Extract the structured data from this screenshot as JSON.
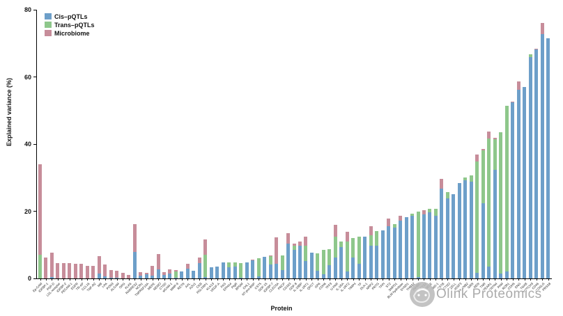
{
  "watermark": {
    "text": "Olink Proteomics",
    "logo": "olink-circle-logo",
    "color": "#9d9d9d"
  },
  "chart_data": {
    "type": "bar",
    "stacked": true,
    "title": "",
    "xlabel": "Protein",
    "ylabel": "Explained variance (%)",
    "ylim": [
      0,
      80
    ],
    "yticks": [
      0,
      20,
      40,
      60,
      80
    ],
    "grid": false,
    "legend_position": "top-left",
    "legend": [
      {
        "label": "Cis–pQTLs",
        "color": "#6d9fc9"
      },
      {
        "label": "Trans–pQTLs",
        "color": "#8ec78b"
      },
      {
        "label": "Microbiome",
        "color": "#c78d9a"
      }
    ],
    "categories": [
      "Ep-CAM",
      "IGFBP-1",
      "PSP-D",
      "LDL receptor",
      "IGFBP-2",
      "PECAM-1",
      "EGFR",
      "TR-AP",
      "CCL16",
      "TNF-R2",
      "MB",
      "t-PA",
      "PON3",
      "ALCAM",
      "OPG",
      "KLK6",
      "RARRES2",
      "NCR1",
      "TNFRSF10A",
      "MEPE",
      "NEMO",
      "CTSD",
      "sICAM-1",
      "MMP-9",
      "RETN",
      "AXL",
      "AZU1",
      "CKB",
      "PGLYRP1",
      "KLK13",
      "VEGF-A",
      "FAS",
      "EPHA4",
      "PIgR",
      "BPGM",
      "CHL1",
      "NT-pro-BNP",
      "CST5",
      "GDF-15",
      "IGFBP-7",
      "CLEC5A",
      "PRCP",
      "CD163",
      "GDF-8",
      "IL-18BP",
      "IL-1RT1",
      "QPCT",
      "GP6",
      "CDH6",
      "TFF3",
      "U-PAR",
      "IL-1RA",
      "IL-1RT2",
      "TIMP4",
      "TF",
      "DLK-1",
      "NRP2",
      "PRTG",
      "TFPI",
      "ST2",
      "SMPD1",
      "BLM hydrolase",
      "SYND1",
      "THBS2",
      "INHBC",
      "CTSZ",
      "SELE",
      "NID-1",
      "CSTB",
      "CTSO",
      "SELL",
      "IGSF3",
      "PLXNB2",
      "GRN",
      "REN",
      "TNR",
      "PEAR1",
      "CNTN4",
      "PAM",
      "ROR1",
      "CDH5",
      "ENG",
      "TNXB",
      "NOTCH3",
      "CD46",
      "ICOSLG",
      "PRSS8"
    ],
    "series": [
      {
        "name": "Cis–pQTLs",
        "color": "#6d9fc9",
        "values": [
          0,
          0,
          0.4,
          0,
          0,
          0,
          0,
          0,
          0,
          0,
          1.4,
          0.7,
          0.3,
          0.3,
          0,
          0,
          7.9,
          0.9,
          1.2,
          0.9,
          2.6,
          1.0,
          1.5,
          0.2,
          2.0,
          2.9,
          2.2,
          4.5,
          0.5,
          3.3,
          3.6,
          4.7,
          3.4,
          3.5,
          0.3,
          4.8,
          5.3,
          0.7,
          6.4,
          4.2,
          4.4,
          2.5,
          10.3,
          8.6,
          9.7,
          5.2,
          7.6,
          2.2,
          1.2,
          4.0,
          6.2,
          9.3,
          2.0,
          6.3,
          4.3,
          12.4,
          9.7,
          9.7,
          14.3,
          15.5,
          15.2,
          17.2,
          18.3,
          18.6,
          0.5,
          19.0,
          19.7,
          18.6,
          26.8,
          23.8,
          25.0,
          28.3,
          29.3,
          28.8,
          1.7,
          22.4,
          3.5,
          32.4,
          1.5,
          2.0,
          52.4,
          56.2,
          57.0,
          65.9,
          68.1,
          72.8,
          71.5
        ]
      },
      {
        "name": "Trans–pQTLs",
        "color": "#8ec78b",
        "values": [
          7.0,
          0,
          0,
          0,
          0,
          0,
          0,
          0,
          0,
          0,
          0,
          0,
          0,
          0,
          0,
          0,
          0,
          0,
          0,
          0,
          0,
          0,
          0,
          1.9,
          0,
          0,
          0,
          0,
          6.6,
          0,
          0,
          0,
          1.3,
          1.2,
          4.3,
          0,
          0,
          5.3,
          0,
          2.4,
          0,
          4.4,
          0,
          1.1,
          0,
          4.5,
          0,
          5.3,
          7.4,
          4.8,
          6.2,
          1.6,
          9.0,
          5.8,
          8.1,
          0,
          3.1,
          4.5,
          0,
          0,
          1.0,
          0,
          0,
          0.7,
          19.3,
          0,
          1.0,
          2.1,
          0,
          1.9,
          0,
          0,
          0.8,
          1.9,
          33.1,
          15.8,
          38.2,
          9.0,
          42.1,
          49.4,
          0,
          0,
          0,
          0.9,
          0,
          0,
          0
        ]
      },
      {
        "name": "Microbiome",
        "color": "#c78d9a",
        "values": [
          27.0,
          6.3,
          7.2,
          4.6,
          4.6,
          4.5,
          4.4,
          4.4,
          3.8,
          3.7,
          5.2,
          3.4,
          2.1,
          2.0,
          1.7,
          1.1,
          8.2,
          0.9,
          0.4,
          2.9,
          4.7,
          0.8,
          1.1,
          0.4,
          0,
          1.4,
          0,
          1.7,
          4.6,
          0,
          0,
          0,
          0,
          0,
          0,
          0,
          0.4,
          0,
          0,
          0.2,
          7.8,
          0,
          3.2,
          0.7,
          1.2,
          2.7,
          0,
          0,
          0,
          0,
          3.5,
          0,
          2.8,
          0,
          0,
          0,
          2.7,
          0,
          0,
          2.4,
          0,
          1.4,
          0,
          0,
          0,
          1.3,
          0,
          0,
          2.9,
          0,
          0,
          0,
          0,
          0,
          2.1,
          0.3,
          2.1,
          0.5,
          0,
          0,
          0.3,
          2.4,
          0,
          0,
          0.3,
          3.2,
          0
        ]
      }
    ]
  }
}
